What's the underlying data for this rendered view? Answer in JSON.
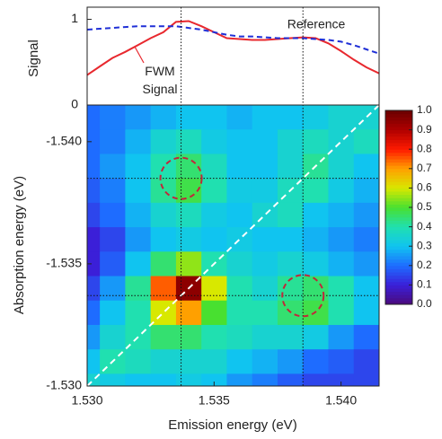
{
  "chart_data": [
    {
      "type": "line",
      "ylabel": "Signal",
      "x": [
        1.53,
        1.5305,
        1.531,
        1.5315,
        1.532,
        1.5325,
        1.533,
        1.5335,
        1.534,
        1.5345,
        1.535,
        1.5355,
        1.536,
        1.5365,
        1.537,
        1.5375,
        1.538,
        1.5385,
        1.539,
        1.5395,
        1.54,
        1.5405,
        1.541,
        1.5415
      ],
      "series": [
        {
          "name": "FWM Signal",
          "color": "#e8282e",
          "dash": false,
          "values": [
            0.35,
            0.45,
            0.55,
            0.62,
            0.7,
            0.78,
            0.85,
            0.97,
            0.98,
            0.92,
            0.85,
            0.78,
            0.77,
            0.76,
            0.76,
            0.77,
            0.78,
            0.79,
            0.78,
            0.72,
            0.63,
            0.53,
            0.44,
            0.37
          ]
        },
        {
          "name": "Reference",
          "color": "#1f2fd6",
          "dash": true,
          "values": [
            0.88,
            0.89,
            0.9,
            0.91,
            0.92,
            0.92,
            0.92,
            0.92,
            0.9,
            0.88,
            0.85,
            0.82,
            0.8,
            0.8,
            0.79,
            0.78,
            0.78,
            0.78,
            0.77,
            0.76,
            0.74,
            0.7,
            0.65,
            0.6
          ]
        }
      ],
      "xlim": [
        1.53,
        1.5415
      ],
      "ylim": [
        0,
        1.1
      ],
      "yticks": [
        0,
        1
      ]
    },
    {
      "type": "heatmap",
      "xlabel": "Emission energy (eV)",
      "ylabel": "Absorption energy (eV)",
      "x": [
        1.53,
        1.531,
        1.532,
        1.533,
        1.534,
        1.535,
        1.536,
        1.537,
        1.538,
        1.539,
        1.54,
        1.541
      ],
      "y": [
        -1.541,
        -1.54,
        -1.539,
        -1.538,
        -1.537,
        -1.536,
        -1.535,
        -1.534,
        -1.533,
        -1.532,
        -1.531,
        -1.53
      ],
      "z": [
        [
          0.2,
          0.22,
          0.25,
          0.28,
          0.3,
          0.3,
          0.28,
          0.3,
          0.3,
          0.32,
          0.35,
          0.35
        ],
        [
          0.2,
          0.22,
          0.28,
          0.35,
          0.38,
          0.32,
          0.3,
          0.3,
          0.35,
          0.38,
          0.35,
          0.38
        ],
        [
          0.2,
          0.25,
          0.3,
          0.4,
          0.45,
          0.38,
          0.3,
          0.3,
          0.35,
          0.42,
          0.35,
          0.3
        ],
        [
          0.18,
          0.22,
          0.3,
          0.42,
          0.48,
          0.4,
          0.32,
          0.32,
          0.38,
          0.4,
          0.32,
          0.28
        ],
        [
          0.15,
          0.2,
          0.28,
          0.35,
          0.38,
          0.32,
          0.3,
          0.35,
          0.38,
          0.3,
          0.28,
          0.25
        ],
        [
          0.1,
          0.15,
          0.25,
          0.3,
          0.32,
          0.3,
          0.32,
          0.3,
          0.3,
          0.28,
          0.25,
          0.22
        ],
        [
          0.1,
          0.18,
          0.3,
          0.45,
          0.55,
          0.4,
          0.35,
          0.32,
          0.35,
          0.32,
          0.28,
          0.25
        ],
        [
          0.15,
          0.25,
          0.42,
          0.75,
          0.95,
          0.6,
          0.4,
          0.35,
          0.42,
          0.45,
          0.4,
          0.3
        ],
        [
          0.2,
          0.3,
          0.4,
          0.6,
          0.7,
          0.5,
          0.4,
          0.4,
          0.45,
          0.48,
          0.4,
          0.3
        ],
        [
          0.25,
          0.35,
          0.4,
          0.45,
          0.45,
          0.4,
          0.38,
          0.35,
          0.35,
          0.32,
          0.25,
          0.2
        ],
        [
          0.3,
          0.4,
          0.38,
          0.35,
          0.35,
          0.35,
          0.3,
          0.28,
          0.25,
          0.2,
          0.18,
          0.15
        ],
        [
          0.35,
          0.32,
          0.3,
          0.3,
          0.32,
          0.3,
          0.25,
          0.22,
          0.18,
          0.15,
          0.15,
          0.15
        ]
      ],
      "xlim": [
        1.53,
        1.5415
      ],
      "ylim": [
        -1.53,
        -1.5415
      ],
      "xticks": [
        {
          "value": 1.53,
          "label": "1.530"
        },
        {
          "value": 1.535,
          "label": "1.535"
        },
        {
          "value": 1.54,
          "label": "1.540"
        }
      ],
      "yticks": [
        {
          "value": -1.54,
          "label": "-1.540"
        },
        {
          "value": -1.535,
          "label": "-1.535"
        },
        {
          "value": -1.53,
          "label": "-1.530"
        }
      ],
      "zlim": [
        0,
        1
      ],
      "zticks": [
        {
          "value": 0,
          "label": "0.0"
        },
        0.1,
        0.2,
        0.3,
        0.4,
        0.5,
        0.6,
        0.7,
        0.8,
        0.9,
        {
          "value": 1,
          "label": "1.0"
        }
      ],
      "colormap": [
        "#4b0a7a",
        "#3b1fd8",
        "#1e6cff",
        "#10c4f0",
        "#20e0b0",
        "#48e030",
        "#d8e800",
        "#ffa000",
        "#ff1a00",
        "#b00000",
        "#6a0000"
      ],
      "guides": {
        "x": [
          1.5337,
          1.5385
        ],
        "y": [
          -1.5337,
          -1.5385
        ]
      },
      "circles": [
        {
          "x": 1.5337,
          "y": -1.5385
        },
        {
          "x": 1.5385,
          "y": -1.5337
        }
      ]
    }
  ]
}
